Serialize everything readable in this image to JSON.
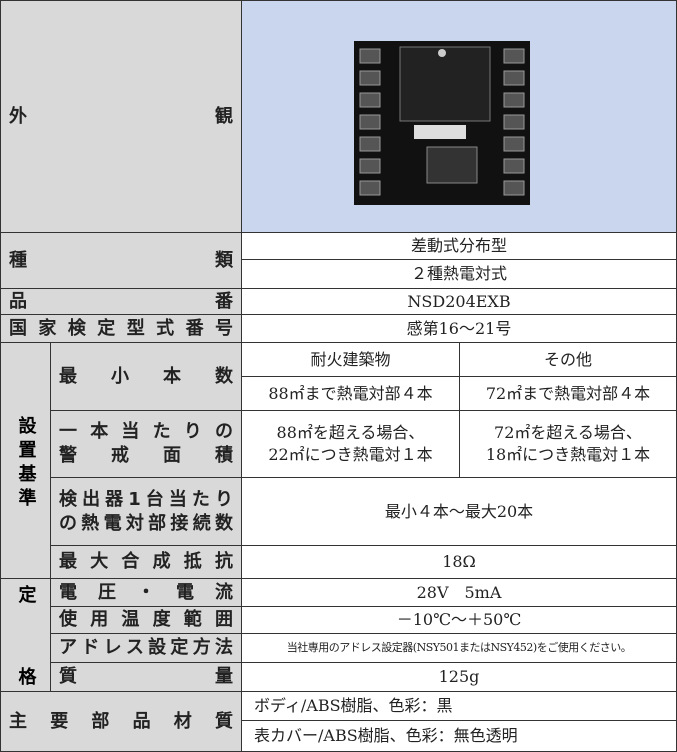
{
  "appearance": {
    "label": "外観"
  },
  "type": {
    "label": "種類",
    "values": [
      "差動式分布型",
      "２種熱電対式"
    ]
  },
  "model_number": {
    "label": "品番",
    "value": "NSD204EXB"
  },
  "approval_number": {
    "label": "国家検定型式番号",
    "value": "感第16～21号"
  },
  "installation": {
    "label": "設置基準",
    "min_count": {
      "label": "最小本数",
      "headers": [
        "耐火建築物",
        "その他"
      ],
      "values": [
        "88㎡まで熱電対部４本",
        "72㎡まで熱電対部４本"
      ]
    },
    "area_per_unit": {
      "label": [
        "一本当たりの",
        "警戒面積"
      ],
      "values": [
        [
          "88㎡を超える場合、",
          "22㎡につき熱電対１本"
        ],
        [
          "72㎡を超える場合、",
          "18㎡につき熱電対１本"
        ]
      ]
    },
    "connections": {
      "label": [
        "検出器1台当たり",
        "の熱電対部接続数"
      ],
      "value": "最小４本～最大20本"
    },
    "max_resistance": {
      "label": "最大合成抵抗",
      "value": "18Ω"
    }
  },
  "rating": {
    "label": "定格",
    "voltage_current": {
      "label": "電圧・電流",
      "value": "28V　5mA"
    },
    "temperature_range": {
      "label": "使用温度範囲",
      "value": "－10℃～＋50℃"
    },
    "address_method": {
      "label": "アドレス設定方法",
      "value": "当社専用のアドレス設定器(NSY501またはNSY452)をご使用ください。"
    },
    "mass": {
      "label": "質量",
      "value": "125g"
    }
  },
  "materials": {
    "label": "主要部品材質",
    "values": [
      "ボディ/ABS樹脂、色彩：黒",
      "表カバー/ABS樹脂、色彩：無色透明"
    ]
  }
}
